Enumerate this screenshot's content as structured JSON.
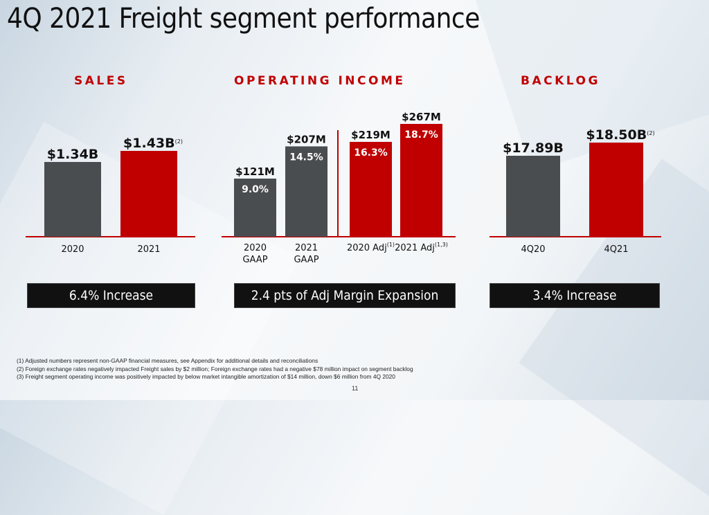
{
  "slide": {
    "title": "4Q 2021 Freight segment performance",
    "page_number": "11",
    "colors": {
      "accent_red": "#c00000",
      "bar_gray": "#4a4d50",
      "callout_bg": "#111111"
    }
  },
  "callouts": {
    "sales": "6.4% Increase",
    "operating_income": "2.4 pts of Adj Margin Expansion",
    "backlog": "3.4% Increase"
  },
  "footnotes": [
    "(1)  Adjusted numbers represent non-GAAP financial measures, see Appendix for additional details and reconciliations",
    "(2)  Foreign exchange rates negatively impacted Freight sales by $2 million; Foreign exchange rates had a negative $78 million impact on segment backlog",
    "(3)  Freight segment operating income was positively impacted by below market intangible amortization of $14 million, down $6 million from 4Q 2020"
  ],
  "chart_data": [
    {
      "type": "bar",
      "title": "SALES",
      "categories": [
        "2020",
        "2021"
      ],
      "values": [
        1.34,
        1.43
      ],
      "unit": "$B",
      "data_labels": [
        "$1.34B",
        "$1.43B"
      ],
      "footnote_refs": [
        "",
        "(2)"
      ],
      "colors": [
        "#4a4d50",
        "#c00000"
      ],
      "xlabel": "",
      "ylabel": "",
      "grid": false
    },
    {
      "type": "bar",
      "title": "OPERATING INCOME",
      "categories": [
        "2020 GAAP",
        "2021 GAAP",
        "2020 Adj",
        "2021 Adj"
      ],
      "category_lines": [
        [
          "2020",
          "GAAP"
        ],
        [
          "2021",
          "GAAP"
        ],
        [
          "2020 Adj"
        ],
        [
          "2021 Adj"
        ]
      ],
      "category_refs": [
        "",
        "",
        "(1)",
        "(1,3)"
      ],
      "values": [
        121,
        207,
        219,
        267
      ],
      "unit": "$M",
      "data_labels": [
        "$121M",
        "$207M",
        "$219M",
        "$267M"
      ],
      "margins": [
        "9.0%",
        "14.5%",
        "16.3%",
        "18.7%"
      ],
      "colors": [
        "#4a4d50",
        "#4a4d50",
        "#c00000",
        "#c00000"
      ],
      "divider_after_index": 1,
      "xlabel": "",
      "ylabel": "",
      "grid": false
    },
    {
      "type": "bar",
      "title": "BACKLOG",
      "categories": [
        "4Q20",
        "4Q21"
      ],
      "values": [
        17.89,
        18.5
      ],
      "unit": "$B",
      "data_labels": [
        "$17.89B",
        "$18.50B"
      ],
      "footnote_refs": [
        "",
        "(2)"
      ],
      "colors": [
        "#4a4d50",
        "#c00000"
      ],
      "xlabel": "",
      "ylabel": "",
      "grid": false
    }
  ]
}
